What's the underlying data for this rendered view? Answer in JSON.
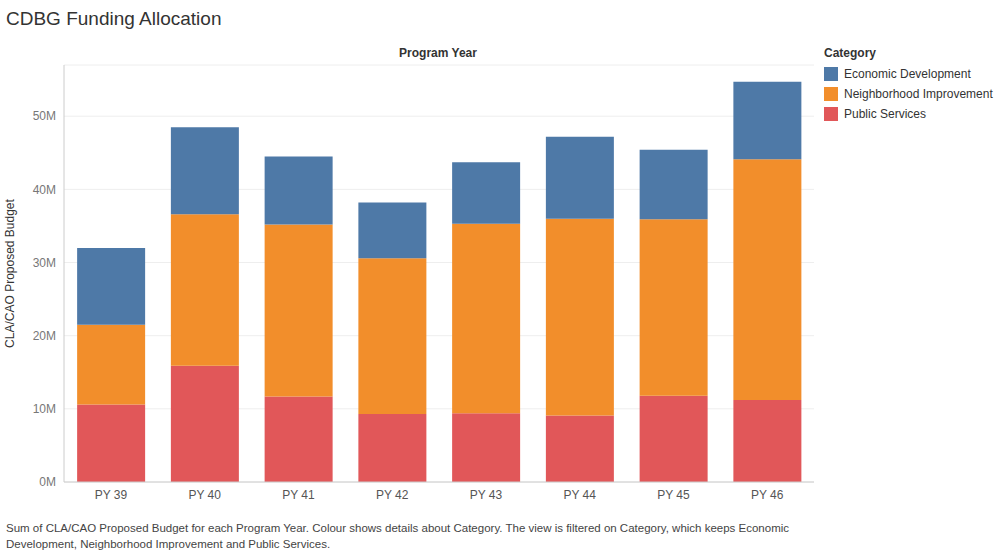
{
  "chart_data": {
    "type": "bar",
    "title": "CDBG Funding Allocation",
    "x_label": "Program Year",
    "y_label": "CLA/CAO Proposed Budget",
    "legend_title": "Category",
    "caption": "Sum of CLA/CAO Proposed Budget for each Program Year.  Colour shows details about Category. The view is filtered on Category, which keeps Economic Development, Neighborhood Improvement and Public Services.",
    "categories": [
      "PY 39",
      "PY 40",
      "PY 41",
      "PY 42",
      "PY 43",
      "PY 44",
      "PY 45",
      "PY 46"
    ],
    "series": [
      {
        "name": "Economic Development",
        "color": "#4e79a7",
        "values": [
          10.5,
          11.9,
          9.3,
          7.6,
          8.4,
          11.2,
          9.5,
          10.6
        ]
      },
      {
        "name": "Neighborhood Improvement",
        "color": "#f28e2b",
        "values": [
          10.9,
          20.7,
          23.5,
          21.3,
          25.9,
          26.9,
          24.1,
          32.9
        ]
      },
      {
        "name": "Public Services",
        "color": "#e15759",
        "values": [
          10.6,
          15.9,
          11.7,
          9.3,
          9.4,
          9.1,
          11.8,
          11.2
        ]
      }
    ],
    "stacked": true,
    "ylim": [
      0,
      57
    ],
    "yticks": [
      {
        "value": 0,
        "label": "0M"
      },
      {
        "value": 10,
        "label": "10M"
      },
      {
        "value": 20,
        "label": "20M"
      },
      {
        "value": 30,
        "label": "30M"
      },
      {
        "value": 40,
        "label": "40M"
      },
      {
        "value": 50,
        "label": "50M"
      }
    ],
    "grid": true,
    "legend": "top-right"
  }
}
